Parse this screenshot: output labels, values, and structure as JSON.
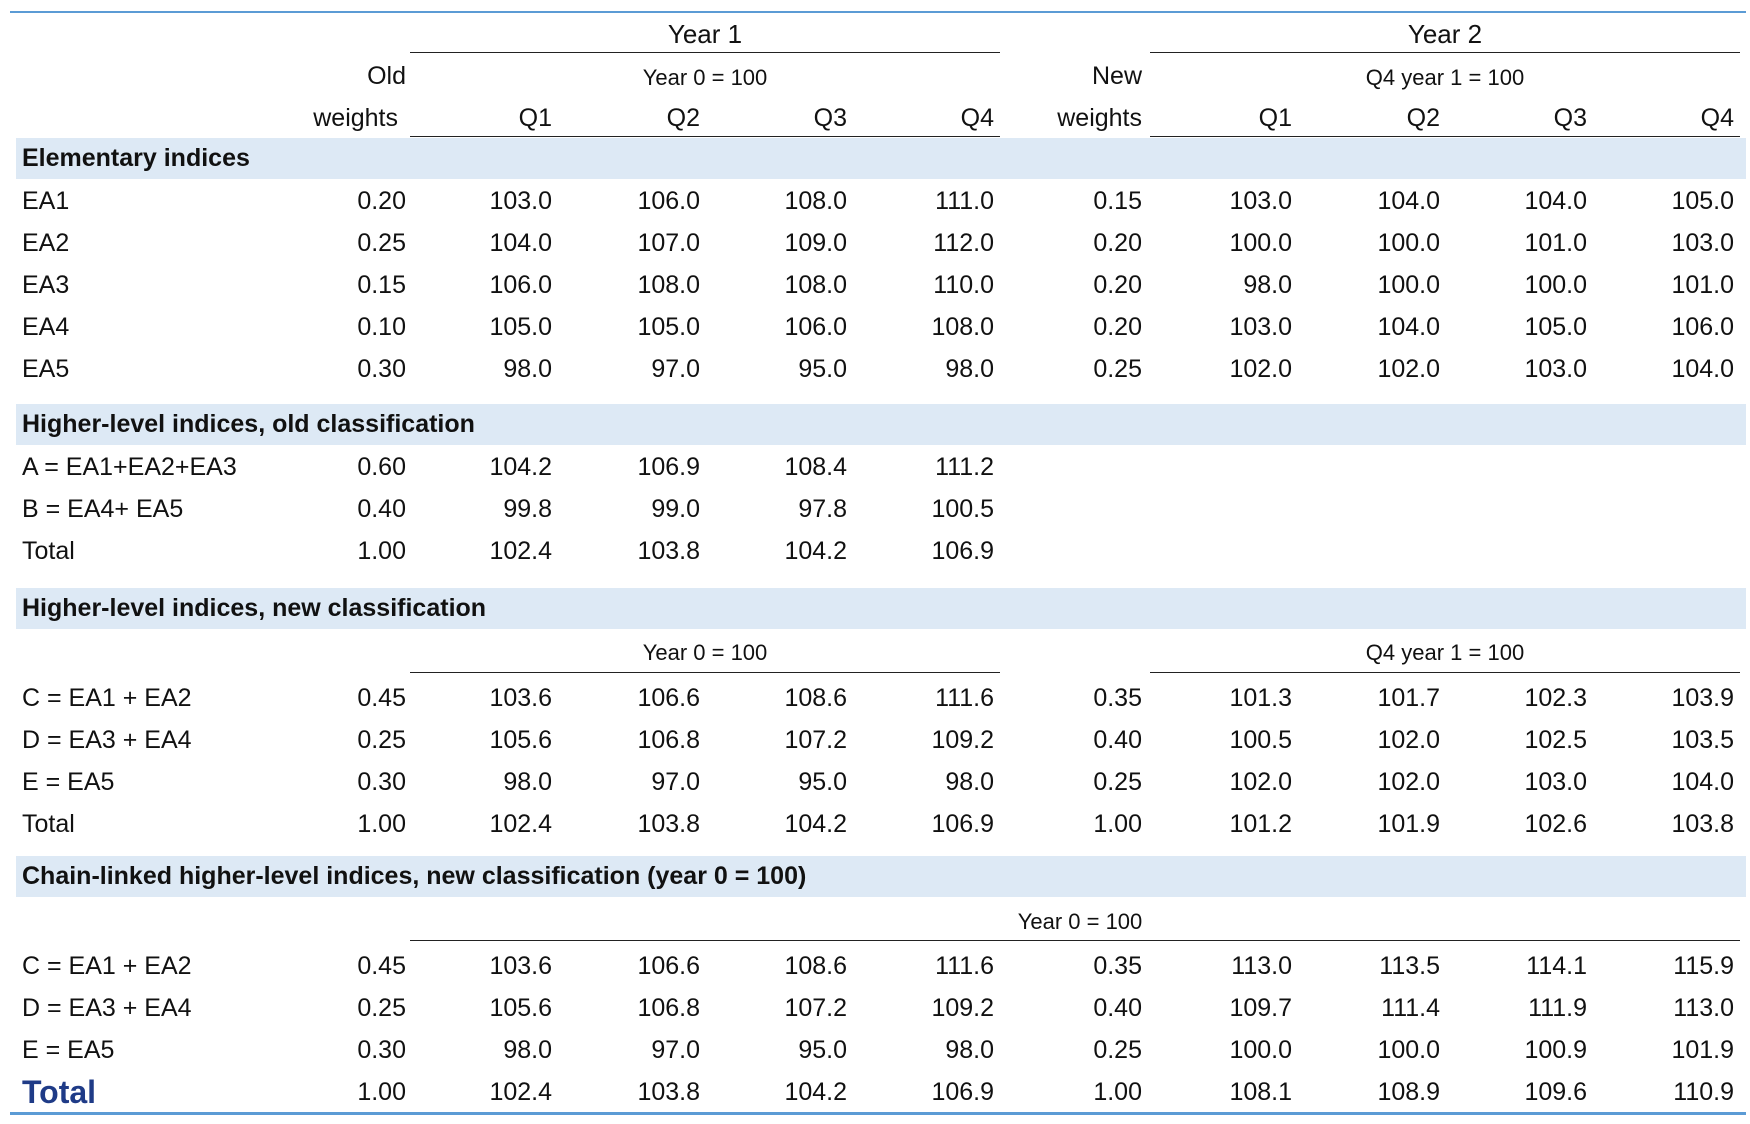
{
  "header": {
    "year1": "Year 1",
    "year2": "Year 2",
    "old_top": "Old",
    "old_bottom": "weights",
    "new_top": "New",
    "new_bottom": "weights",
    "base_y1": "Year 0 = 100",
    "base_y2": "Q4 year 1 = 100",
    "quarters": [
      "Q1",
      "Q2",
      "Q3",
      "Q4"
    ]
  },
  "sections": {
    "elementary": "Elementary indices",
    "old_class": "Higher-level indices, old classification",
    "new_class": "Higher-level indices, new classification",
    "chain": "Chain-linked higher-level indices, new classification (year 0 = 100)"
  },
  "new_class_bases": {
    "y1": "Year 0 = 100",
    "y2": "Q4 year 1 = 100"
  },
  "chain_base": "Year 0 = 100",
  "elementary_rows": [
    {
      "label": "EA1",
      "w_old": "0.20",
      "y1": [
        "103.0",
        "106.0",
        "108.0",
        "111.0"
      ],
      "w_new": "0.15",
      "y2": [
        "103.0",
        "104.0",
        "104.0",
        "105.0"
      ]
    },
    {
      "label": "EA2",
      "w_old": "0.25",
      "y1": [
        "104.0",
        "107.0",
        "109.0",
        "112.0"
      ],
      "w_new": "0.20",
      "y2": [
        "100.0",
        "100.0",
        "101.0",
        "103.0"
      ]
    },
    {
      "label": "EA3",
      "w_old": "0.15",
      "y1": [
        "106.0",
        "108.0",
        "108.0",
        "110.0"
      ],
      "w_new": "0.20",
      "y2": [
        "98.0",
        "100.0",
        "100.0",
        "101.0"
      ]
    },
    {
      "label": "EA4",
      "w_old": "0.10",
      "y1": [
        "105.0",
        "105.0",
        "106.0",
        "108.0"
      ],
      "w_new": "0.20",
      "y2": [
        "103.0",
        "104.0",
        "105.0",
        "106.0"
      ]
    },
    {
      "label": "EA5",
      "w_old": "0.30",
      "y1": [
        "98.0",
        "97.0",
        "95.0",
        "98.0"
      ],
      "w_new": "0.25",
      "y2": [
        "102.0",
        "102.0",
        "103.0",
        "104.0"
      ]
    }
  ],
  "old_rows": [
    {
      "label": "A = EA1+EA2+EA3",
      "w_old": "0.60",
      "y1": [
        "104.2",
        "106.9",
        "108.4",
        "111.2"
      ]
    },
    {
      "label": "B = EA4+ EA5",
      "w_old": "0.40",
      "y1": [
        "99.8",
        "99.0",
        "97.8",
        "100.5"
      ]
    },
    {
      "label": "Total",
      "w_old": "1.00",
      "y1": [
        "102.4",
        "103.8",
        "104.2",
        "106.9"
      ]
    }
  ],
  "new_rows": [
    {
      "label": "C = EA1 + EA2",
      "w_old": "0.45",
      "y1": [
        "103.6",
        "106.6",
        "108.6",
        "111.6"
      ],
      "w_new": "0.35",
      "y2": [
        "101.3",
        "101.7",
        "102.3",
        "103.9"
      ]
    },
    {
      "label": "D = EA3 + EA4",
      "w_old": "0.25",
      "y1": [
        "105.6",
        "106.8",
        "107.2",
        "109.2"
      ],
      "w_new": "0.40",
      "y2": [
        "100.5",
        "102.0",
        "102.5",
        "103.5"
      ]
    },
    {
      "label": "E = EA5",
      "w_old": "0.30",
      "y1": [
        "98.0",
        "97.0",
        "95.0",
        "98.0"
      ],
      "w_new": "0.25",
      "y2": [
        "102.0",
        "102.0",
        "103.0",
        "104.0"
      ]
    },
    {
      "label": "Total",
      "w_old": "1.00",
      "y1": [
        "102.4",
        "103.8",
        "104.2",
        "106.9"
      ],
      "w_new": "1.00",
      "y2": [
        "101.2",
        "101.9",
        "102.6",
        "103.8"
      ]
    }
  ],
  "chain_rows": [
    {
      "label": "C = EA1 + EA2",
      "w_old": "0.45",
      "y1": [
        "103.6",
        "106.6",
        "108.6",
        "111.6"
      ],
      "w_new": "0.35",
      "y2": [
        "113.0",
        "113.5",
        "114.1",
        "115.9"
      ]
    },
    {
      "label": "D = EA3 + EA4",
      "w_old": "0.25",
      "y1": [
        "105.6",
        "106.8",
        "107.2",
        "109.2"
      ],
      "w_new": "0.40",
      "y2": [
        "109.7",
        "111.4",
        "111.9",
        "113.0"
      ]
    },
    {
      "label": "E = EA5",
      "w_old": "0.30",
      "y1": [
        "98.0",
        "97.0",
        "95.0",
        "98.0"
      ],
      "w_new": "0.25",
      "y2": [
        "100.0",
        "100.0",
        "100.9",
        "101.9"
      ]
    },
    {
      "label": "Total",
      "w_old": "1.00",
      "y1": [
        "102.4",
        "103.8",
        "104.2",
        "106.9"
      ],
      "w_new": "1.00",
      "y2": [
        "108.1",
        "108.9",
        "109.6",
        "110.9"
      ]
    }
  ]
}
